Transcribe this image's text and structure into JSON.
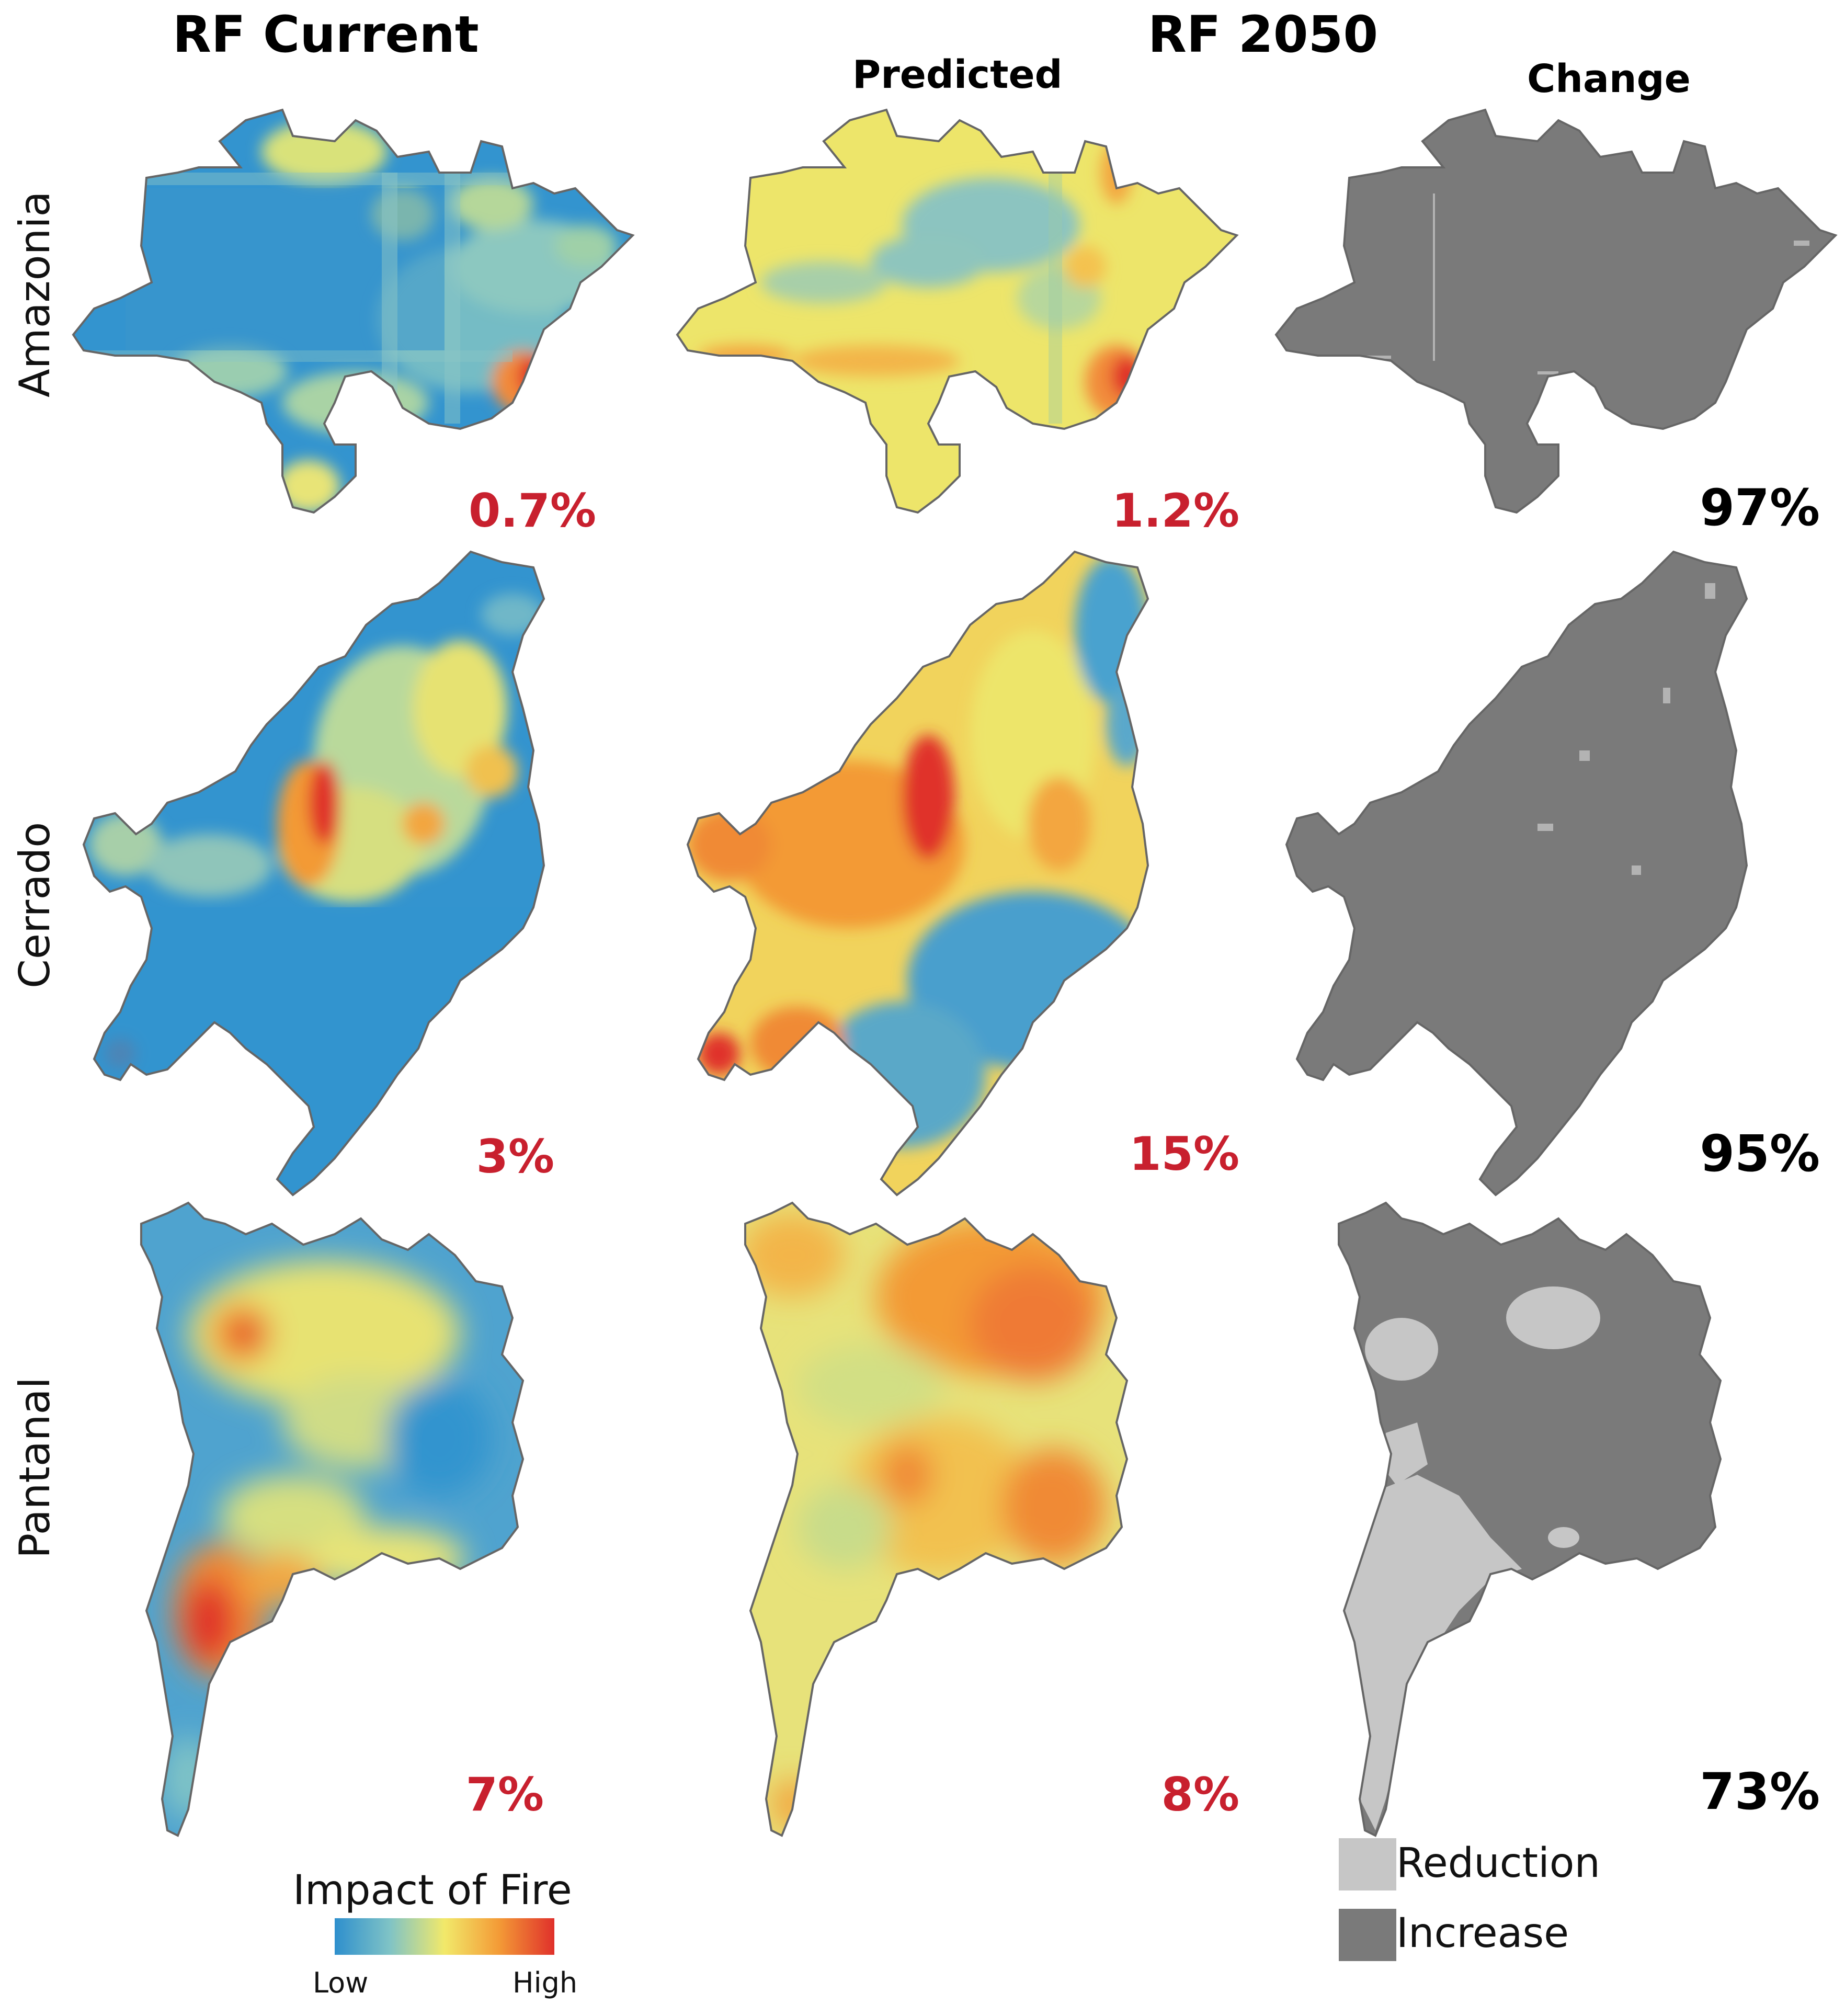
{
  "headers": {
    "rf_current": "RF Current",
    "rf_2050": "RF 2050",
    "predicted": "Predicted",
    "change": "Change"
  },
  "rows": [
    {
      "label": "Amazonia",
      "current_pct": "0.7%",
      "predicted_pct": "1.2%",
      "change_pct": "97%"
    },
    {
      "label": "Cerrado",
      "current_pct": "3%",
      "predicted_pct": "15%",
      "change_pct": "95%"
    },
    {
      "label": "Pantanal",
      "current_pct": "7%",
      "predicted_pct": "8%",
      "change_pct": "73%"
    }
  ],
  "colorbar": {
    "title": "Impact of Fire",
    "low": "Low",
    "high": "High",
    "colors": [
      "#2e8fcd",
      "#7fc3c6",
      "#f2e96a",
      "#f39a36",
      "#e0302b"
    ]
  },
  "change_legend": [
    {
      "label": "Reduction",
      "color": "#c6c6c6"
    },
    {
      "label": "Increase",
      "color": "#7a7a7a"
    }
  ],
  "palette": {
    "blue": "#2e8fcd",
    "light_blue": "#7fc3c6",
    "yellow": "#ede56a",
    "orange": "#f39a36",
    "red": "#e0302b",
    "increase_gray": "#7a7a7a",
    "reduction_gray": "#c6c6c6",
    "outline": "#666666"
  }
}
